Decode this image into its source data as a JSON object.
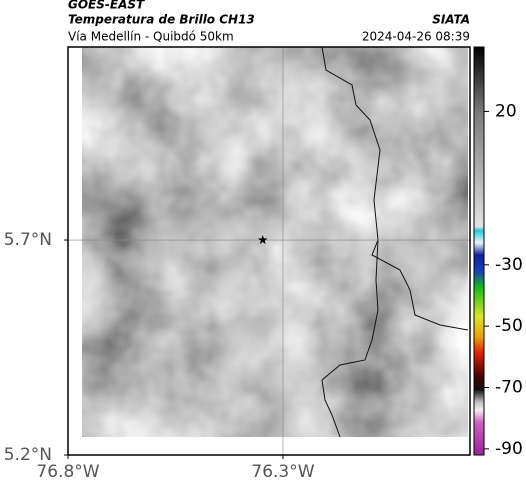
{
  "chart_data": {
    "type": "map",
    "source": "GOES-EAST",
    "title": "Temperatura de Brillo CH13",
    "agency": "SIATA",
    "subtitle": "Vía Medellín - Quibdó 50km",
    "timestamp": "2024-04-26 08:39",
    "xlim": [
      -76.8,
      -75.865
    ],
    "ylim": [
      5.2,
      6.149
    ],
    "xticks": [
      {
        "value": -76.8,
        "label": "76.8°W"
      },
      {
        "value": -76.3,
        "label": "76.3°W"
      }
    ],
    "yticks": [
      {
        "value": 5.2,
        "label": "5.2°N"
      },
      {
        "value": 5.7,
        "label": "5.7°N"
      }
    ],
    "grid": true,
    "marker": {
      "x": -76.347,
      "y": 5.7
    },
    "colorbar": {
      "lim": [
        -92,
        41
      ],
      "ticks": [
        20,
        -30,
        -50,
        -70,
        -90
      ]
    }
  }
}
